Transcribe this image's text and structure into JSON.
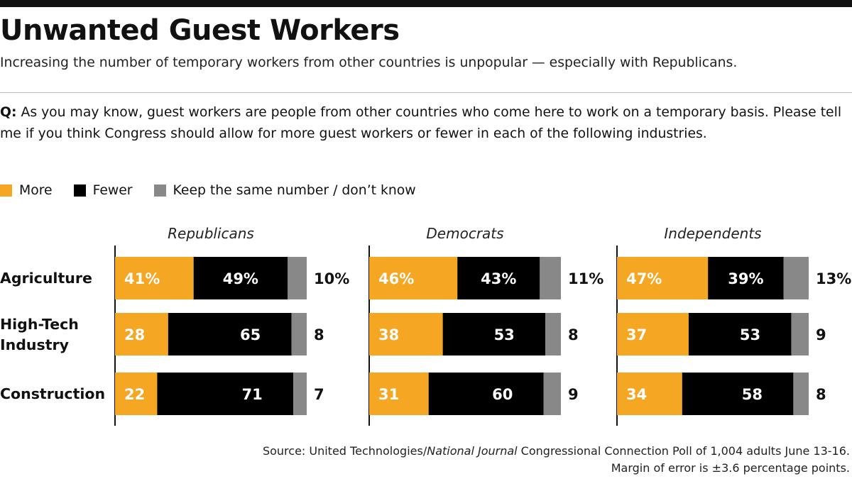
{
  "header": {
    "title": "Unwanted Guest Workers",
    "subtitle": "Increasing the number of temporary workers from other countries is unpopular — especially with Republicans."
  },
  "question": {
    "label": "Q:",
    "text": "As you may know, guest workers are people from other countries who come here to work on a temporary basis. Please tell me if you think Congress should allow for more guest workers or fewer in each of the following industries."
  },
  "legend": [
    {
      "label": "More",
      "color": "#f5a623"
    },
    {
      "label": "Fewer",
      "color": "#000000"
    },
    {
      "label": "Keep the same number / don’t know",
      "color": "#888888"
    }
  ],
  "chart_data": {
    "type": "bar",
    "orientation": "horizontal",
    "stacked": true,
    "unit": "%",
    "xlim": [
      0,
      100
    ],
    "categories": [
      "Agriculture",
      "High-Tech Industry",
      "Construction"
    ],
    "groups": [
      {
        "name": "Republicans",
        "more": [
          41,
          28,
          22
        ],
        "fewer": [
          49,
          65,
          71
        ],
        "same": [
          10,
          8,
          7
        ]
      },
      {
        "name": "Democrats",
        "more": [
          46,
          38,
          31
        ],
        "fewer": [
          43,
          53,
          60
        ],
        "same": [
          11,
          8,
          9
        ]
      },
      {
        "name": "Independents",
        "more": [
          47,
          37,
          34
        ],
        "fewer": [
          39,
          53,
          58
        ],
        "same": [
          13,
          9,
          8
        ]
      }
    ],
    "colors": {
      "more": "#f5a623",
      "fewer": "#000000",
      "same": "#888888"
    }
  },
  "footer": {
    "source_prefix": "Source: United Technologies/",
    "source_italic": "National Journal",
    "source_suffix": " Congressional Connection Poll of 1,004 adults June 13-16.",
    "margin": "Margin of error is ±3.6 percentage points."
  }
}
